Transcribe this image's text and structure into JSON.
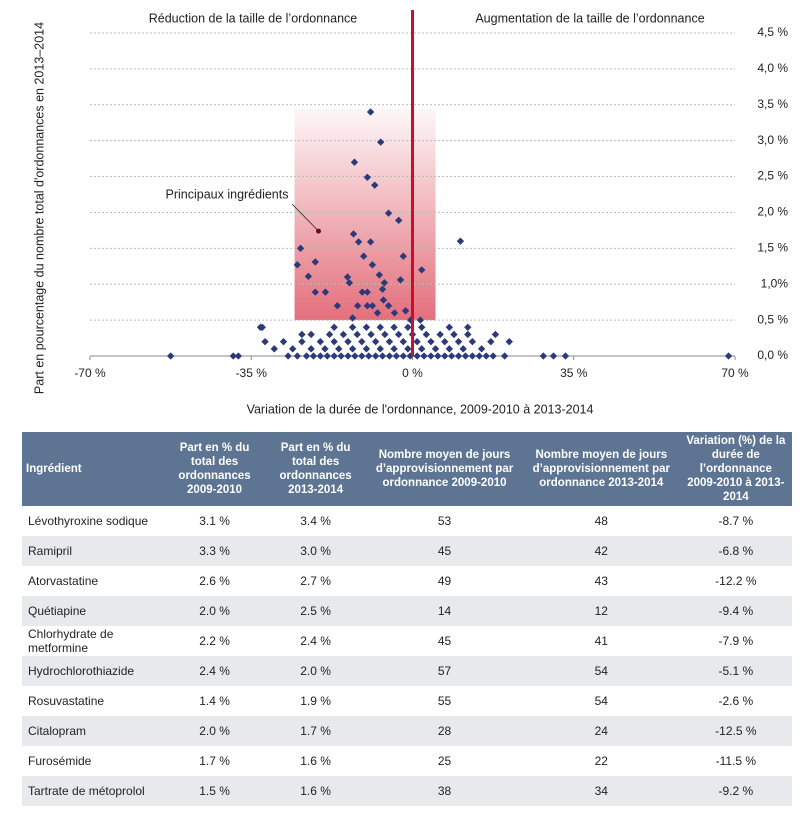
{
  "chart_data": {
    "type": "scatter",
    "xlabel": "Variation de la durée de l'ordonnance, 2009-2010 à 2013-2014",
    "ylabel": "Part en pourcentage du nombre total d'ordonnances en 2013–2014",
    "left_label": "Réduction de la taille de l’ordonnance",
    "right_label": "Augmentation de la taille de l’ordonnance",
    "annotation": {
      "text": "Principaux ingrédients",
      "x": -20.4,
      "y": 1.74
    },
    "highlight": {
      "xlim": [
        -25.6,
        5
      ],
      "ylim": [
        0.5,
        3.45
      ],
      "color": "#e0606e"
    },
    "vline": 0,
    "vline_color": "#c8102e",
    "xlim": [
      -70,
      70
    ],
    "ylim": [
      0,
      4.5
    ],
    "xticks": [
      {
        "value": -70,
        "label": "-70 %"
      },
      {
        "value": -35,
        "label": "-35 %"
      },
      {
        "value": 0,
        "label": "0 %"
      },
      {
        "value": 35,
        "label": "35 %"
      },
      {
        "value": 70,
        "label": "70 %"
      }
    ],
    "yticks": [
      {
        "value": 0,
        "label": "0,0 %"
      },
      {
        "value": 0.5,
        "label": "0,5 %"
      },
      {
        "value": 1,
        "label": "1,0%"
      },
      {
        "value": 1.5,
        "label": "1,5  %"
      },
      {
        "value": 2,
        "label": "2,0 %"
      },
      {
        "value": 2.5,
        "label": "2,5 %"
      },
      {
        "value": 3,
        "label": "3,0 %"
      },
      {
        "value": 3.5,
        "label": "3,5 %"
      },
      {
        "value": 4,
        "label": "4,0 %"
      },
      {
        "value": 4.5,
        "label": "4,5 %"
      }
    ],
    "grid": true,
    "color": "#2b3a7a",
    "x": [
      -9.1,
      -6.9,
      -12.6,
      -9.8,
      -8.2,
      -5.2,
      -3.0,
      10.4,
      -12.8,
      -11.7,
      -9.1,
      -24.3,
      -10.6,
      -2.0,
      -25.0,
      -21.1,
      -8.7,
      2.0,
      -22.6,
      -14.1,
      -7.2,
      -2.6,
      -13.7,
      -6.1,
      -21.1,
      -18.9,
      -10.9,
      -9.8,
      -6.5,
      -16.3,
      -11.9,
      -9.8,
      -8.7,
      -6.3,
      -5.2,
      -13.0,
      -7.6,
      -3.9,
      -1.5,
      -0.4,
      1.7,
      -52.5,
      -38.9,
      -37.8,
      28.4,
      30.6,
      33.2,
      68.6,
      -32.6,
      -32.0,
      -27,
      -25,
      -23,
      -21.5,
      -20,
      -18.5,
      -17,
      -15.5,
      -14,
      -12.5,
      -11,
      -9.5,
      -8,
      -6.5,
      -5,
      -3.5,
      -2,
      -0.5,
      1,
      2.5,
      4,
      5.5,
      7,
      8.5,
      10,
      11.5,
      13,
      14.5,
      16,
      17.5,
      20,
      -30,
      -26,
      -22,
      -19,
      -16,
      -13,
      -10,
      -7,
      -4,
      -1,
      2,
      5,
      8,
      11,
      15,
      -28,
      -24,
      -20,
      -17,
      -14,
      -11,
      -8,
      -5,
      -2,
      1,
      4,
      7,
      10,
      13,
      17,
      21,
      -24,
      -22,
      -18,
      -15,
      -12,
      -9,
      -6,
      -3,
      0,
      3,
      6,
      9,
      12,
      18,
      -33,
      -17,
      -13,
      -10,
      -7,
      -4,
      -1,
      2,
      8,
      12
    ],
    "values": [
      3.4,
      2.98,
      2.7,
      2.49,
      2.38,
      1.99,
      1.89,
      1.6,
      1.7,
      1.59,
      1.59,
      1.5,
      1.39,
      1.39,
      1.27,
      1.31,
      1.27,
      1.2,
      1.11,
      1.1,
      1.13,
      1.06,
      1.02,
      1.02,
      0.89,
      0.89,
      0.89,
      0.89,
      0.93,
      0.7,
      0.7,
      0.7,
      0.7,
      0.78,
      0.7,
      0.53,
      0.6,
      0.6,
      0.63,
      0.5,
      0.5,
      0,
      0,
      0,
      0,
      0,
      0,
      0,
      0.4,
      0.2,
      0,
      0,
      0,
      0,
      0,
      0,
      0,
      0,
      0,
      0,
      0,
      0,
      0,
      0,
      0,
      0,
      0,
      0,
      0,
      0,
      0,
      0,
      0,
      0,
      0,
      0,
      0,
      0,
      0,
      0,
      0,
      0.1,
      0.1,
      0.1,
      0.1,
      0.1,
      0.1,
      0.1,
      0.1,
      0.1,
      0.1,
      0.1,
      0.1,
      0.1,
      0.1,
      0.1,
      0.2,
      0.2,
      0.2,
      0.2,
      0.2,
      0.2,
      0.2,
      0.2,
      0.2,
      0.2,
      0.2,
      0.2,
      0.2,
      0.2,
      0.2,
      0.2,
      0.3,
      0.3,
      0.3,
      0.3,
      0.3,
      0.3,
      0.3,
      0.3,
      0.3,
      0.3,
      0.3,
      0.3,
      0.3,
      0.3,
      0.4,
      0.4,
      0.4,
      0.4,
      0.4,
      0.4,
      0.4,
      0.4,
      0.4,
      0.4
    ]
  },
  "table": {
    "header": [
      "Ingrédient",
      "Part en % du total des ordonnances 2009-2010",
      "Part en % du total des ordonnances 2013-2014",
      "Nombre moyen de jours d’approvisionnement par ordonnance 2009-2010",
      "Nombre moyen de jours d’approvisionnement par ordonnance 2013-2014",
      "Variation (%) de la durée de l’ordonnance 2009-2010 à 2013-2014"
    ],
    "rows": [
      [
        "Lévothyroxine sodique",
        "3.1 %",
        "3.4 %",
        "53",
        "48",
        "-8.7 %"
      ],
      [
        "Ramipril",
        "3.3 %",
        "3.0 %",
        "45",
        "42",
        "-6.8 %"
      ],
      [
        "Atorvastatine",
        "2.6 %",
        "2.7 %",
        "49",
        "43",
        "-12.2 %"
      ],
      [
        "Quétiapine",
        "2.0 %",
        "2.5 %",
        "14",
        "12",
        "-9.4 %"
      ],
      [
        "Chlorhydrate de metformine",
        "2.2 %",
        "2.4 %",
        "45",
        "41",
        "-7.9 %"
      ],
      [
        "Hydrochlorothiazide",
        "2.4 %",
        "2.0 %",
        "57",
        "54",
        "-5.1 %"
      ],
      [
        "Rosuvastatine",
        "1.4 %",
        "1.9 %",
        "55",
        "54",
        "-2.6 %"
      ],
      [
        "Citalopram",
        "2.0 %",
        "1.7 %",
        "28",
        "24",
        "-12.5 %"
      ],
      [
        "Furosémide",
        "1.7 %",
        "1.6 %",
        "25",
        "22",
        "-11.5 %"
      ],
      [
        "Tartrate de métoprolol",
        "1.5 %",
        "1.6 %",
        "38",
        "34",
        "-9.2 %"
      ]
    ]
  }
}
